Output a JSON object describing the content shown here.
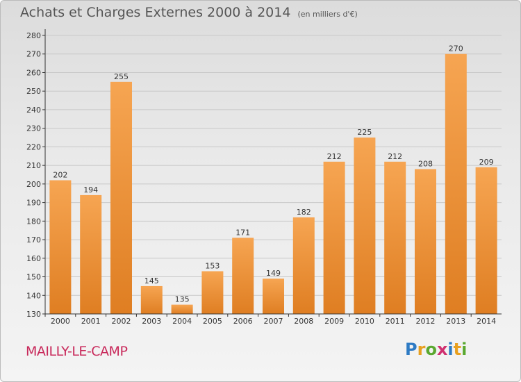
{
  "header": {
    "title": "Achats et Charges Externes 2000 à 2014",
    "unit": "(en milliers d'€)"
  },
  "footer": {
    "commune": "MAILLY-LE-CAMP",
    "logo": "Proxiti"
  },
  "colors": {
    "bar_top": "#f6a552",
    "bar_bottom": "#df7e22",
    "commune": "#c8285a"
  },
  "chart_data": {
    "type": "bar",
    "title": "Achats et Charges Externes 2000 à 2014",
    "subtitle": "(en milliers d'€)",
    "categories": [
      "2000",
      "2001",
      "2002",
      "2003",
      "2004",
      "2005",
      "2006",
      "2007",
      "2008",
      "2009",
      "2010",
      "2011",
      "2012",
      "2013",
      "2014"
    ],
    "values": [
      202,
      194,
      255,
      145,
      135,
      153,
      171,
      149,
      182,
      212,
      225,
      212,
      208,
      270,
      209
    ],
    "ylim": [
      130,
      280
    ],
    "yticks": [
      130,
      140,
      150,
      160,
      170,
      180,
      190,
      200,
      210,
      220,
      230,
      240,
      250,
      260,
      270,
      280
    ],
    "grid": true,
    "data_labels": true
  }
}
